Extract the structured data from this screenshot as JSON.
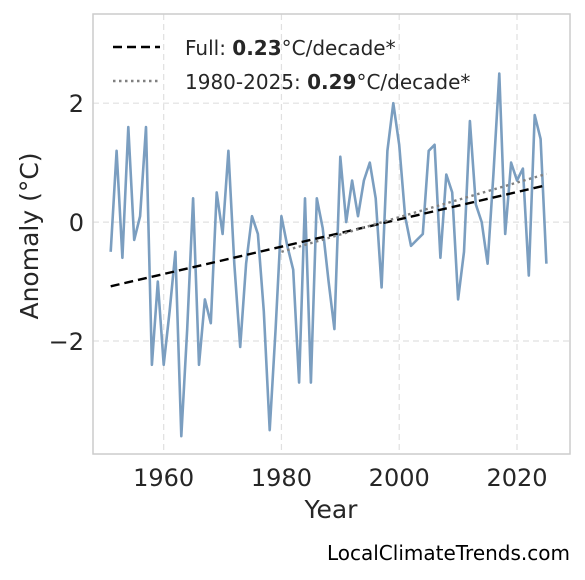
{
  "chart_data": {
    "type": "line",
    "xlabel": "Year",
    "ylabel": "Anomaly (°C)",
    "xlim": [
      1948,
      2029
    ],
    "ylim": [
      -3.9,
      3.5
    ],
    "xticks": [
      1960,
      1980,
      2000,
      2020
    ],
    "yticks": [
      -2,
      0,
      2
    ],
    "ytick_labels": [
      "−2",
      "0",
      "2"
    ],
    "grid": true,
    "legend_position": "top-left",
    "series": [
      {
        "style": "solid",
        "color": "#7b9ec0",
        "x": [
          1951,
          1952,
          1953,
          1954,
          1955,
          1956,
          1957,
          1958,
          1959,
          1960,
          1961,
          1962,
          1963,
          1964,
          1965,
          1966,
          1967,
          1968,
          1969,
          1970,
          1971,
          1972,
          1973,
          1974,
          1975,
          1976,
          1977,
          1978,
          1979,
          1980,
          1981,
          1982,
          1983,
          1984,
          1985,
          1986,
          1987,
          1988,
          1989,
          1990,
          1991,
          1992,
          1993,
          1994,
          1995,
          1996,
          1997,
          1998,
          1999,
          2000,
          2001,
          2002,
          2003,
          2004,
          2005,
          2006,
          2007,
          2008,
          2009,
          2010,
          2011,
          2012,
          2013,
          2014,
          2015,
          2016,
          2017,
          2018,
          2019,
          2020,
          2021,
          2022,
          2023,
          2024,
          2025
        ],
        "y": [
          -0.5,
          1.2,
          -0.6,
          1.6,
          -0.3,
          0.1,
          1.6,
          -2.4,
          -1.0,
          -2.4,
          -1.5,
          -0.5,
          -3.6,
          -1.8,
          0.4,
          -2.4,
          -1.3,
          -1.7,
          0.5,
          -0.2,
          1.2,
          -0.7,
          -2.1,
          -0.7,
          0.1,
          -0.2,
          -1.5,
          -3.5,
          -1.8,
          0.1,
          -0.4,
          -0.8,
          -2.7,
          0.4,
          -2.7,
          0.4,
          -0.1,
          -1.0,
          -1.8,
          1.1,
          0.0,
          0.7,
          0.1,
          0.7,
          1.0,
          0.4,
          -1.1,
          1.2,
          2.0,
          1.3,
          0.1,
          -0.4,
          -0.3,
          -0.2,
          1.2,
          1.3,
          -0.6,
          0.8,
          0.5,
          -1.3,
          -0.5,
          1.7,
          0.3,
          0.0,
          -0.7,
          0.8,
          2.5,
          -0.2,
          1.0,
          0.7,
          0.9,
          -0.9,
          1.8,
          1.4,
          -0.7
        ]
      },
      {
        "style": "dashed",
        "color": "#000000",
        "x": [
          1951,
          2025
        ],
        "y": [
          -1.08,
          0.62
        ]
      },
      {
        "style": "dotted",
        "color": "#808080",
        "x": [
          1980,
          2025
        ],
        "y": [
          -0.5,
          0.81
        ]
      }
    ],
    "legend": [
      {
        "style": "dashed",
        "color": "#000000",
        "prefix": "Full: ",
        "value": "0.23",
        "suffix": "°C/decade*"
      },
      {
        "style": "dotted",
        "color": "#808080",
        "prefix": "1980-2025: ",
        "value": "0.29",
        "suffix": "°C/decade*"
      }
    ],
    "watermark": "LocalClimateTrends.com"
  }
}
